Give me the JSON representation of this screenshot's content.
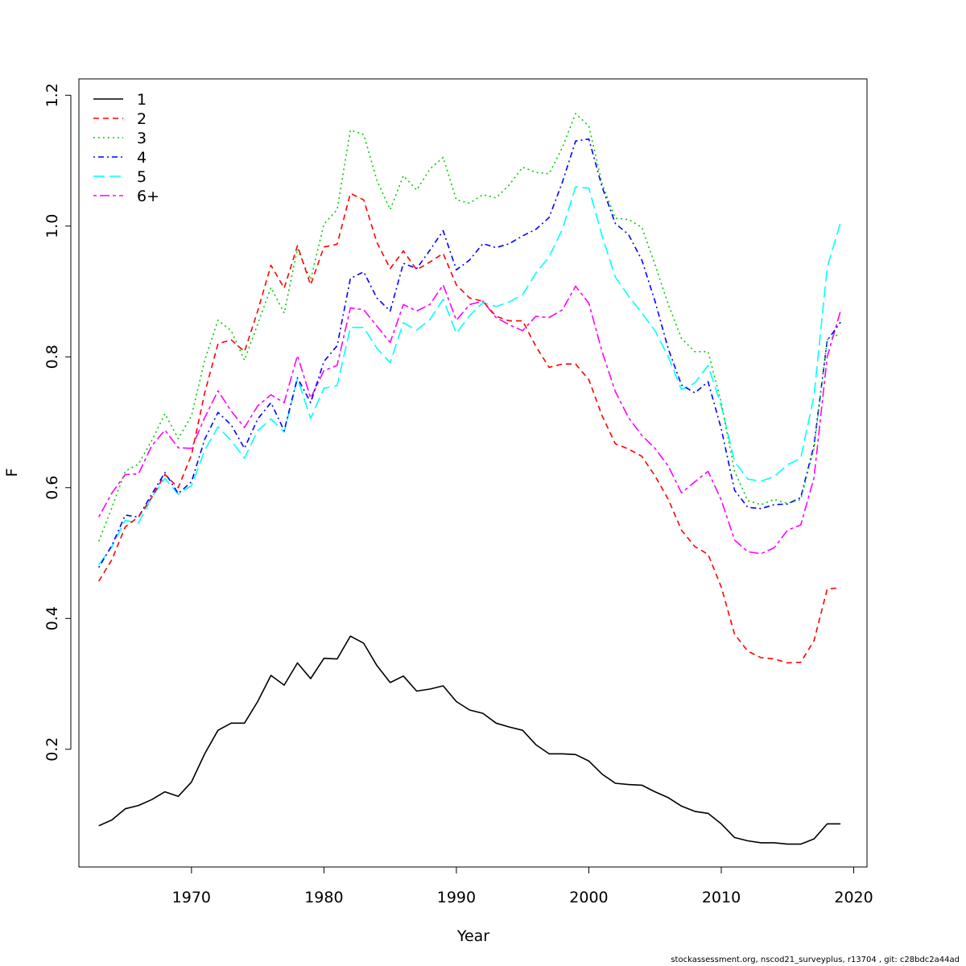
{
  "chart_data": {
    "type": "line",
    "xlabel": "Year",
    "ylabel": "F",
    "xlim": [
      1961.5,
      2021.0
    ],
    "ylim": [
      0.02,
      1.225
    ],
    "x_ticks": [
      1970,
      1980,
      1990,
      2000,
      2010,
      2020
    ],
    "y_ticks": [
      0.2,
      0.4,
      0.6,
      0.8,
      1.0,
      1.2
    ],
    "y_tick_labels": [
      "0.2",
      "0.4",
      "0.6",
      "0.8",
      "1.0",
      "1.2"
    ],
    "grid": false,
    "legend_position": "top-left",
    "x": [
      1963,
      1964,
      1965,
      1966,
      1967,
      1968,
      1969,
      1970,
      1971,
      1972,
      1973,
      1974,
      1975,
      1976,
      1977,
      1978,
      1979,
      1980,
      1981,
      1982,
      1983,
      1984,
      1985,
      1986,
      1987,
      1988,
      1989,
      1990,
      1991,
      1992,
      1993,
      1994,
      1995,
      1996,
      1997,
      1998,
      1999,
      2000,
      2001,
      2002,
      2003,
      2004,
      2005,
      2006,
      2007,
      2008,
      2009,
      2010,
      2011,
      2012,
      2013,
      2014,
      2015,
      2016,
      2017,
      2018,
      2019
    ],
    "series": [
      {
        "name": "1",
        "color": "#000000",
        "dash": "solid",
        "values": [
          0.083,
          0.092,
          0.109,
          0.114,
          0.123,
          0.135,
          0.128,
          0.15,
          0.193,
          0.229,
          0.24,
          0.24,
          0.273,
          0.313,
          0.298,
          0.332,
          0.308,
          0.339,
          0.338,
          0.373,
          0.362,
          0.328,
          0.302,
          0.312,
          0.289,
          0.292,
          0.297,
          0.273,
          0.26,
          0.255,
          0.24,
          0.234,
          0.229,
          0.207,
          0.193,
          0.193,
          0.192,
          0.182,
          0.162,
          0.148,
          0.146,
          0.145,
          0.135,
          0.126,
          0.113,
          0.105,
          0.102,
          0.086,
          0.065,
          0.06,
          0.057,
          0.057,
          0.055,
          0.055,
          0.063,
          0.086,
          0.086
        ]
      },
      {
        "name": "2",
        "color": "#ff0000",
        "dash": "dashed",
        "values": [
          0.457,
          0.49,
          0.54,
          0.555,
          0.585,
          0.62,
          0.6,
          0.65,
          0.745,
          0.82,
          0.826,
          0.808,
          0.87,
          0.94,
          0.905,
          0.97,
          0.91,
          0.968,
          0.972,
          1.05,
          1.04,
          0.975,
          0.935,
          0.962,
          0.933,
          0.945,
          0.958,
          0.91,
          0.89,
          0.885,
          0.862,
          0.855,
          0.855,
          0.816,
          0.784,
          0.789,
          0.789,
          0.765,
          0.71,
          0.667,
          0.659,
          0.648,
          0.618,
          0.582,
          0.535,
          0.51,
          0.498,
          0.448,
          0.376,
          0.35,
          0.34,
          0.338,
          0.332,
          0.333,
          0.366,
          0.445,
          0.447
        ]
      },
      {
        "name": "3",
        "color": "#00cd00",
        "dash": "dotted",
        "values": [
          0.518,
          0.57,
          0.625,
          0.636,
          0.672,
          0.713,
          0.675,
          0.71,
          0.795,
          0.856,
          0.84,
          0.795,
          0.85,
          0.906,
          0.867,
          0.965,
          0.918,
          1.003,
          1.025,
          1.147,
          1.14,
          1.07,
          1.025,
          1.077,
          1.055,
          1.087,
          1.105,
          1.04,
          1.035,
          1.048,
          1.043,
          1.063,
          1.09,
          1.082,
          1.08,
          1.12,
          1.172,
          1.153,
          1.065,
          1.012,
          1.01,
          0.998,
          0.941,
          0.88,
          0.828,
          0.808,
          0.808,
          0.73,
          0.625,
          0.58,
          0.574,
          0.582,
          0.576,
          0.582,
          0.66,
          0.826,
          0.836
        ]
      },
      {
        "name": "4",
        "color": "#0000ff",
        "dash": "dotdash",
        "values": [
          0.478,
          0.512,
          0.558,
          0.555,
          0.59,
          0.623,
          0.591,
          0.609,
          0.674,
          0.715,
          0.696,
          0.66,
          0.705,
          0.73,
          0.687,
          0.768,
          0.73,
          0.793,
          0.817,
          0.92,
          0.93,
          0.89,
          0.87,
          0.943,
          0.935,
          0.963,
          0.993,
          0.933,
          0.948,
          0.973,
          0.967,
          0.973,
          0.985,
          0.995,
          1.013,
          1.067,
          1.13,
          1.133,
          1.06,
          1.004,
          0.987,
          0.948,
          0.885,
          0.812,
          0.757,
          0.745,
          0.762,
          0.69,
          0.596,
          0.57,
          0.568,
          0.574,
          0.575,
          0.585,
          0.665,
          0.825,
          0.853
        ]
      },
      {
        "name": "5",
        "color": "#00ffff",
        "dash": "longdash",
        "values": [
          0.482,
          0.51,
          0.55,
          0.546,
          0.585,
          0.614,
          0.59,
          0.603,
          0.657,
          0.693,
          0.672,
          0.645,
          0.687,
          0.705,
          0.685,
          0.767,
          0.706,
          0.752,
          0.756,
          0.845,
          0.845,
          0.813,
          0.791,
          0.852,
          0.841,
          0.857,
          0.888,
          0.836,
          0.863,
          0.883,
          0.877,
          0.884,
          0.895,
          0.928,
          0.953,
          0.995,
          1.06,
          1.058,
          0.985,
          0.922,
          0.893,
          0.867,
          0.84,
          0.8,
          0.75,
          0.76,
          0.787,
          0.725,
          0.64,
          0.613,
          0.61,
          0.617,
          0.635,
          0.645,
          0.74,
          0.937,
          1.005
        ]
      },
      {
        "name": "6+",
        "color": "#ff00ff",
        "dash": "twodash",
        "values": [
          0.555,
          0.592,
          0.62,
          0.621,
          0.664,
          0.688,
          0.661,
          0.66,
          0.707,
          0.748,
          0.717,
          0.692,
          0.725,
          0.742,
          0.73,
          0.802,
          0.737,
          0.779,
          0.787,
          0.875,
          0.872,
          0.847,
          0.822,
          0.88,
          0.87,
          0.88,
          0.91,
          0.856,
          0.88,
          0.885,
          0.86,
          0.849,
          0.84,
          0.862,
          0.86,
          0.872,
          0.908,
          0.882,
          0.808,
          0.747,
          0.707,
          0.68,
          0.66,
          0.633,
          0.592,
          0.609,
          0.625,
          0.581,
          0.52,
          0.502,
          0.499,
          0.508,
          0.535,
          0.543,
          0.615,
          0.8,
          0.87
        ]
      }
    ]
  },
  "footer": "stockassessment.org, nscod21_surveyplus, r13704 , git: c28bdc2a44ad"
}
